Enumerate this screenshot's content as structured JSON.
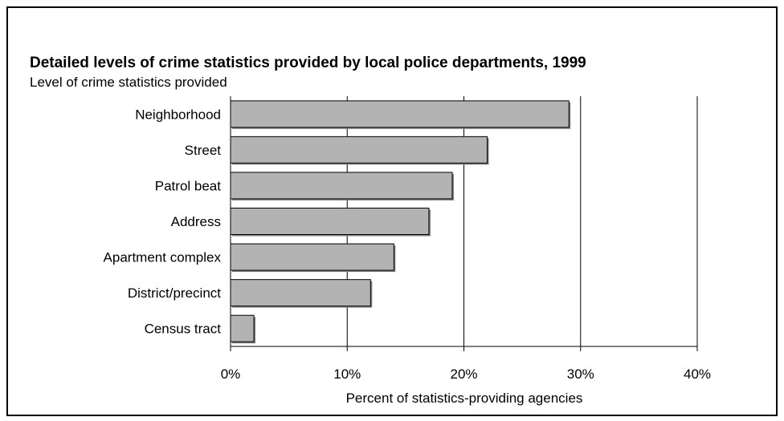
{
  "chart_data": {
    "type": "bar",
    "orientation": "horizontal",
    "title": "Detailed levels of crime statistics provided by local police departments, 1999",
    "ylabel": "Level of crime statistics provided",
    "xlabel": "Percent of statistics-providing agencies",
    "categories": [
      "Neighborhood",
      "Street",
      "Patrol beat",
      "Address",
      "Apartment complex",
      "District/precinct",
      "Census tract"
    ],
    "values": [
      29,
      22,
      19,
      17,
      14,
      12,
      2
    ],
    "xlim": [
      0,
      40
    ],
    "xticks": [
      "0%",
      "10%",
      "20%",
      "30%",
      "40%"
    ],
    "xtick_values": [
      0,
      10,
      20,
      30,
      40
    ],
    "grid": "vertical",
    "legend": "none",
    "colors": {
      "bar_fill": "#b3b3b3",
      "bar_stroke": "#000000",
      "bar_shadow": "#808080",
      "grid": "#000000",
      "frame": "#000000"
    }
  }
}
